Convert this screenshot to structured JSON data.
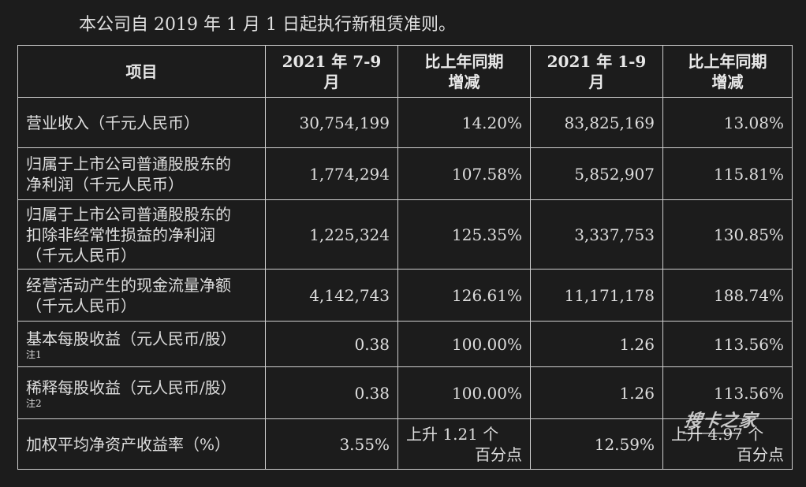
{
  "intro": "本公司自 2019 年 1 月 1 日起执行新租赁准则。",
  "headers": [
    "项目",
    "2021 年 7-9 月",
    "比上年同期\n增减",
    "2021 年 1-9 月",
    "比上年同期\n增减"
  ],
  "rows": [
    {
      "item": [
        "营业收入（千元人民币）"
      ],
      "note": "",
      "q3": "30,754,199",
      "q3_change": [
        "14.20%"
      ],
      "ytd": "83,825,169",
      "ytd_change": [
        "13.08%"
      ]
    },
    {
      "item": [
        "归属于上市公司普通股股东的",
        "净利润（千元人民币）"
      ],
      "note": "",
      "q3": "1,774,294",
      "q3_change": [
        "107.58%"
      ],
      "ytd": "5,852,907",
      "ytd_change": [
        "115.81%"
      ]
    },
    {
      "item": [
        "归属于上市公司普通股股东的",
        "扣除非经常性损益的净利润",
        "（千元人民币）"
      ],
      "note": "",
      "q3": "1,225,324",
      "q3_change": [
        "125.35%"
      ],
      "ytd": "3,337,753",
      "ytd_change": [
        "130.85%"
      ]
    },
    {
      "item": [
        "经营活动产生的现金流量净额",
        "（千元人民币）"
      ],
      "note": "",
      "q3": "4,142,743",
      "q3_change": [
        "126.61%"
      ],
      "ytd": "11,171,178",
      "ytd_change": [
        "188.74%"
      ]
    },
    {
      "item": [
        "基本每股收益（元人民币/股）"
      ],
      "note": "注1",
      "q3": "0.38",
      "q3_change": [
        "100.00%"
      ],
      "ytd": "1.26",
      "ytd_change": [
        "113.56%"
      ]
    },
    {
      "item": [
        "稀释每股收益（元人民币/股）"
      ],
      "note": "注2",
      "q3": "0.38",
      "q3_change": [
        "100.00%"
      ],
      "ytd": "1.26",
      "ytd_change": [
        "113.56%"
      ]
    },
    {
      "item": [
        "加权平均净资产收益率（%）"
      ],
      "note": "",
      "q3": "3.55%",
      "q3_change": [
        "上升 1.21 个",
        "百分点"
      ],
      "ytd": "12.59%",
      "ytd_change": [
        "上升 4.97 个",
        "百分点"
      ]
    }
  ],
  "watermark": "搜卡之家"
}
